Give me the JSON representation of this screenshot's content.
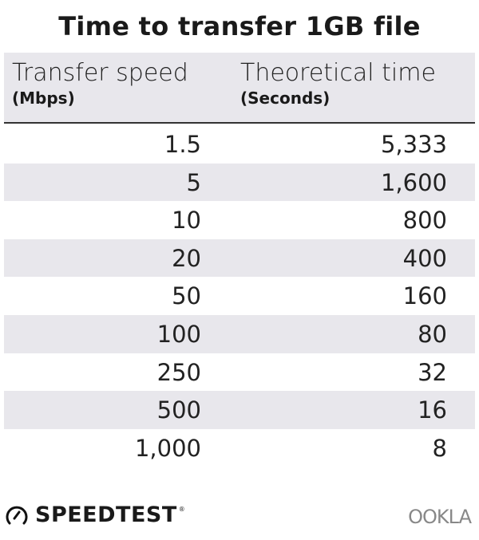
{
  "chart_data": {
    "type": "table",
    "title": "Time to transfer 1GB file",
    "columns": [
      {
        "label": "Transfer speed",
        "unit": "(Mbps)"
      },
      {
        "label": "Theoretical time",
        "unit": "(Seconds)"
      }
    ],
    "rows": [
      [
        "1.5",
        "5,333"
      ],
      [
        "5",
        "1,600"
      ],
      [
        "10",
        "800"
      ],
      [
        "20",
        "400"
      ],
      [
        "50",
        "160"
      ],
      [
        "100",
        "80"
      ],
      [
        "250",
        "32"
      ],
      [
        "500",
        "16"
      ],
      [
        "1,000",
        "8"
      ]
    ],
    "band_color": "#e8e7ec"
  },
  "footer": {
    "speedtest": "SPEEDTEST",
    "speedtest_mark": "®",
    "ookla": "OOKLA"
  }
}
